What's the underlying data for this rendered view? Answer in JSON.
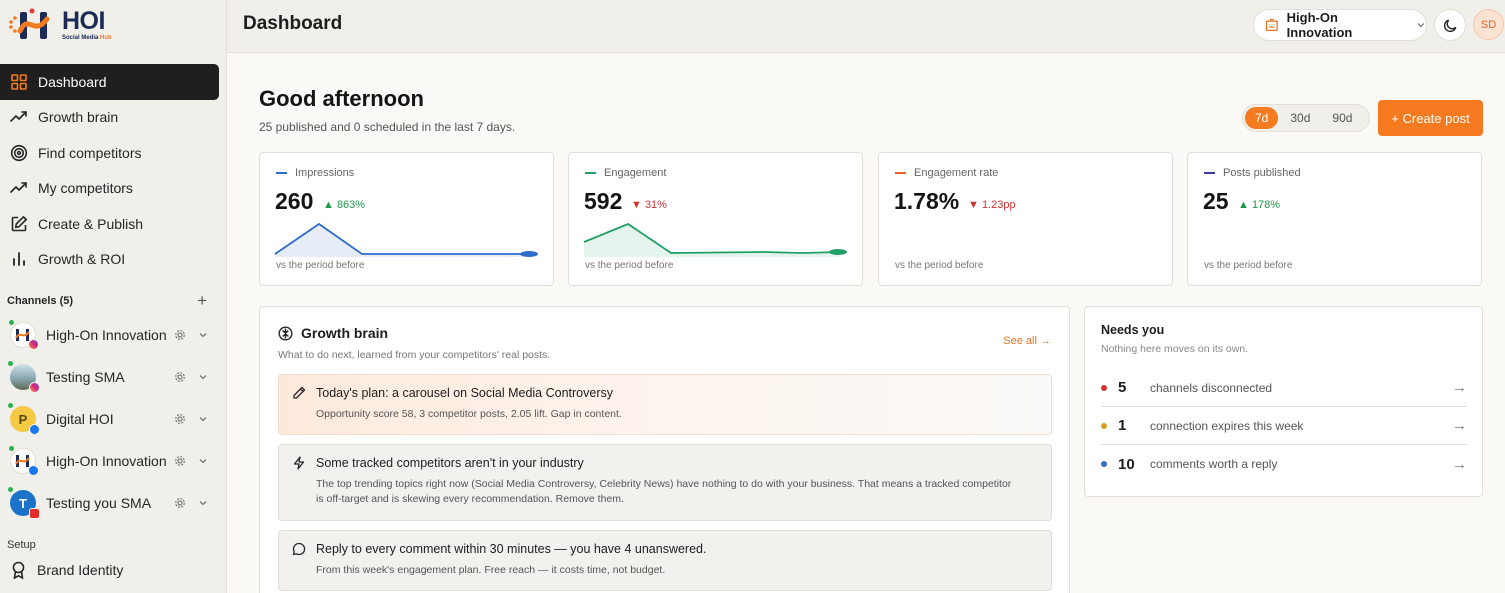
{
  "brand": {
    "logo_title": "HOI",
    "logo_sub_1": "Social Media",
    "logo_sub_2": "Hub",
    "accent": "#f57a20"
  },
  "sidebar": {
    "nav": [
      {
        "label": "Dashboard",
        "icon": "grid-icon",
        "active": true
      },
      {
        "label": "Growth brain",
        "icon": "trend-up-icon"
      },
      {
        "label": "Find competitors",
        "icon": "target-icon"
      },
      {
        "label": "My competitors",
        "icon": "trend-up-icon"
      },
      {
        "label": "Create & Publish",
        "icon": "edit-icon"
      },
      {
        "label": "Growth & ROI",
        "icon": "bar-chart-icon"
      }
    ],
    "channels_label": "Channels (5)",
    "add_label": "+",
    "channels": [
      {
        "name": "High-On Innovation",
        "network": "instagram"
      },
      {
        "name": "Testing SMA",
        "network": "instagram"
      },
      {
        "name": "Digital HOI",
        "network": "facebook",
        "initial": "P"
      },
      {
        "name": "High-On Innovation",
        "network": "facebook"
      },
      {
        "name": "Testing you SMA",
        "network": "youtube",
        "initial": "T"
      }
    ],
    "setup_label": "Setup",
    "brand_identity": "Brand Identity"
  },
  "header": {
    "title": "Dashboard",
    "workspace": "High-On Innovation",
    "user_initials": "SD"
  },
  "main": {
    "greeting": "Good afternoon",
    "summary": "25 published and 0 scheduled in the last 7 days.",
    "ranges": [
      "7d",
      "30d",
      "90d"
    ],
    "active_range": "7d",
    "create_label": "+ Create post",
    "kpis": [
      {
        "label": "Impressions",
        "value": "260",
        "delta": "▲ 863%",
        "direction": "up",
        "color": "#2e6cc9",
        "foot": "vs the period before"
      },
      {
        "label": "Engagement",
        "value": "592",
        "delta": "▼ 31%",
        "direction": "down",
        "color": "#20a066",
        "foot": "vs the period before"
      },
      {
        "label": "Engagement rate",
        "value": "1.78%",
        "delta": "▼ 1.23pp",
        "direction": "down",
        "color": "#e8652a",
        "foot": "vs the period before"
      },
      {
        "label": "Posts published",
        "value": "25",
        "delta": "▲ 178%",
        "direction": "up",
        "color": "#3a3a9e",
        "foot": "vs the period before"
      }
    ]
  },
  "growth_brain": {
    "title": "Growth brain",
    "subtitle": "What to do next, learned from your competitors' real posts.",
    "see_all": "See all →",
    "items": [
      {
        "title": "Today's plan: a carousel on Social Media Controversy",
        "body": "Opportunity score 58, 3 competitor posts, 2.05 lift. Gap in content.",
        "icon": "pencil-icon"
      },
      {
        "title": "Some tracked competitors aren't in your industry",
        "body": "The top trending topics right now (Social Media Controversy, Celebrity News) have nothing to do with your business. That means a tracked competitor is off-target and is skewing every recommendation. Remove them.",
        "icon": "lightning-icon"
      },
      {
        "title": "Reply to every comment within 30 minutes — you have 4 unanswered.",
        "body": "From this week's engagement plan. Free reach — it costs time, not budget.",
        "icon": "comment-icon"
      }
    ]
  },
  "needs_you": {
    "title": "Needs you",
    "subtitle": "Nothing here moves on its own.",
    "items": [
      {
        "count": "5",
        "text": "channels disconnected",
        "color": "#d13434"
      },
      {
        "count": "1",
        "text": "connection expires this week",
        "color": "#d69e1c"
      },
      {
        "count": "10",
        "text": "comments worth a reply",
        "color": "#2e6cc9"
      }
    ],
    "arrow": "→"
  }
}
